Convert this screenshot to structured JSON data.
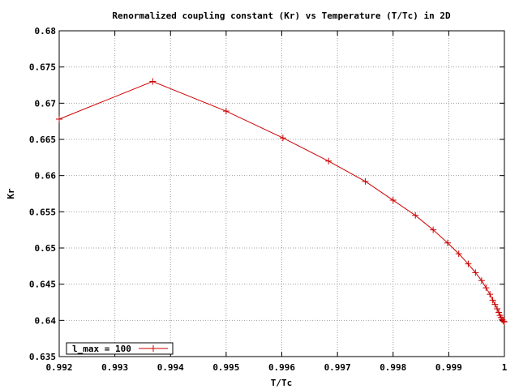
{
  "chart_data": {
    "type": "line",
    "title": "Renormalized coupling constant (Kr) vs Temperature (T/Tc) in 2D",
    "xlabel": "T/Tc",
    "ylabel": "Kr",
    "xlim": [
      0.992,
      1.0
    ],
    "ylim": [
      0.635,
      0.68
    ],
    "grid": true,
    "legend_position": "bottom-left",
    "x_ticks": [
      "0.992",
      "0.993",
      "0.994",
      "0.995",
      "0.996",
      "0.997",
      "0.998",
      "0.999",
      "1"
    ],
    "y_ticks": [
      "0.635",
      "0.64",
      "0.645",
      "0.65",
      "0.655",
      "0.66",
      "0.665",
      "0.67",
      "0.675",
      "0.68"
    ],
    "series": [
      {
        "name": "l_max = 100",
        "color": "#cc0000",
        "marker": "plus",
        "points": [
          [
            0.992,
            0.6678
          ],
          [
            0.99368,
            0.673
          ],
          [
            0.995,
            0.6689
          ],
          [
            0.99602,
            0.6652
          ],
          [
            0.99684,
            0.662
          ],
          [
            0.9975,
            0.6592
          ],
          [
            0.998,
            0.6566
          ],
          [
            0.9984,
            0.6545
          ],
          [
            0.99872,
            0.6525
          ],
          [
            0.99898,
            0.6507
          ],
          [
            0.99918,
            0.6492
          ],
          [
            0.99935,
            0.6478
          ],
          [
            0.99948,
            0.6466
          ],
          [
            0.99959,
            0.6455
          ],
          [
            0.99967,
            0.6445
          ],
          [
            0.99974,
            0.6436
          ],
          [
            0.99979,
            0.6428
          ],
          [
            0.99983,
            0.6422
          ],
          [
            0.99987,
            0.6416
          ],
          [
            0.9999,
            0.6411
          ],
          [
            0.99992,
            0.6407
          ],
          [
            0.99994,
            0.6404
          ],
          [
            0.99996,
            0.6401
          ],
          [
            0.99998,
            0.6399
          ],
          [
            1.0,
            0.6398
          ]
        ]
      }
    ]
  }
}
